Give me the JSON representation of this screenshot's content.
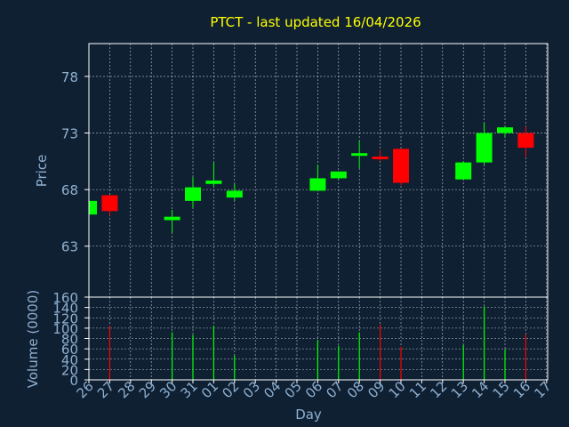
{
  "chart_data": {
    "type": "candlestick",
    "title": "PTCT - last updated 16/04/2026",
    "xlabel": "Day",
    "ylabel": "Price",
    "ylabel2": "Volume (0000)",
    "days": [
      "26",
      "27",
      "28",
      "29",
      "30",
      "31",
      "01",
      "02",
      "03",
      "04",
      "05",
      "06",
      "07",
      "08",
      "09",
      "10",
      "11",
      "12",
      "13",
      "14",
      "15",
      "16",
      "17"
    ],
    "price_ticks": [
      63,
      68,
      73,
      78
    ],
    "price_range": [
      58.5,
      80.9
    ],
    "volume_ticks": [
      0,
      20,
      40,
      60,
      80,
      100,
      120,
      140,
      160
    ],
    "volume_range": [
      0,
      160
    ],
    "candles": [
      {
        "day": "26",
        "open": 65.8,
        "high": 67.0,
        "low": 65.8,
        "close": 67.0,
        "up": true
      },
      {
        "day": "27",
        "open": 67.5,
        "high": 67.5,
        "low": 65.7,
        "close": 66.1,
        "up": false
      },
      {
        "day": "30",
        "open": 65.3,
        "high": 66.2,
        "low": 64.2,
        "close": 65.6,
        "up": true
      },
      {
        "day": "31",
        "open": 67.0,
        "high": 69.1,
        "low": 66.4,
        "close": 68.2,
        "up": true
      },
      {
        "day": "01",
        "open": 68.5,
        "high": 70.4,
        "low": 68.3,
        "close": 68.8,
        "up": true
      },
      {
        "day": "02",
        "open": 67.3,
        "high": 68.5,
        "low": 67.0,
        "close": 67.9,
        "up": true
      },
      {
        "day": "06",
        "open": 67.9,
        "high": 70.2,
        "low": 67.9,
        "close": 69.0,
        "up": true
      },
      {
        "day": "07",
        "open": 69.0,
        "high": 69.6,
        "low": 68.9,
        "close": 69.6,
        "up": true
      },
      {
        "day": "08",
        "open": 71.0,
        "high": 72.3,
        "low": 69.9,
        "close": 71.2,
        "up": true
      },
      {
        "day": "09",
        "open": 70.9,
        "high": 71.5,
        "low": 70.5,
        "close": 70.7,
        "up": false
      },
      {
        "day": "10",
        "open": 71.6,
        "high": 71.6,
        "low": 68.4,
        "close": 68.6,
        "up": false
      },
      {
        "day": "13",
        "open": 68.9,
        "high": 70.5,
        "low": 68.9,
        "close": 70.4,
        "up": true
      },
      {
        "day": "14",
        "open": 70.4,
        "high": 73.9,
        "low": 70.2,
        "close": 73.0,
        "up": true
      },
      {
        "day": "15",
        "open": 73.0,
        "high": 73.6,
        "low": 72.6,
        "close": 73.5,
        "up": true
      },
      {
        "day": "16",
        "open": 73.0,
        "high": 73.6,
        "low": 70.9,
        "close": 71.7,
        "up": false
      }
    ],
    "volumes": [
      {
        "day": "27",
        "value": 105,
        "up": false
      },
      {
        "day": "30",
        "value": 92,
        "up": true
      },
      {
        "day": "31",
        "value": 87,
        "up": true
      },
      {
        "day": "01",
        "value": 104,
        "up": true
      },
      {
        "day": "02",
        "value": 47,
        "up": true
      },
      {
        "day": "06",
        "value": 77,
        "up": true
      },
      {
        "day": "07",
        "value": 66,
        "up": true
      },
      {
        "day": "08",
        "value": 92,
        "up": true
      },
      {
        "day": "09",
        "value": 107,
        "up": false
      },
      {
        "day": "10",
        "value": 64,
        "up": false
      },
      {
        "day": "13",
        "value": 67,
        "up": true
      },
      {
        "day": "14",
        "value": 142,
        "up": true
      },
      {
        "day": "15",
        "value": 59,
        "up": true
      },
      {
        "day": "16",
        "value": 88,
        "up": false
      }
    ],
    "grid": true,
    "colors": {
      "background": "#0f2033",
      "up": "#00ff00",
      "down": "#ff0000",
      "axis": "#ffffff",
      "grid": "#ffffff",
      "tick_label": "#8fb0d0",
      "title": "#ffff00"
    }
  }
}
